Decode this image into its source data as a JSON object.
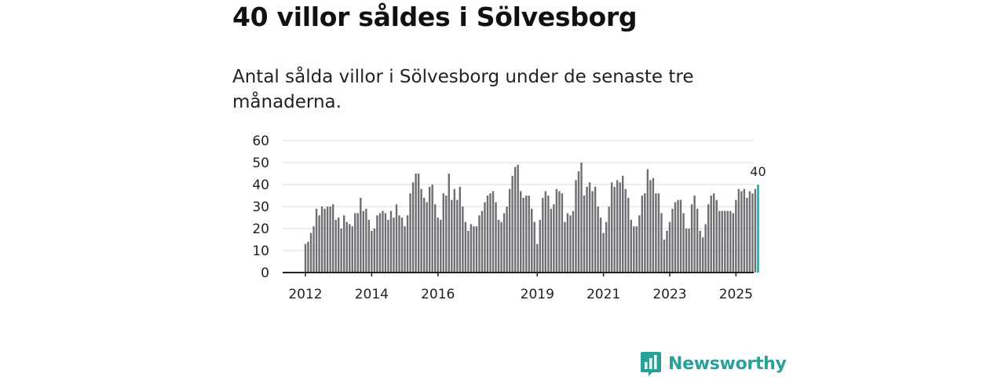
{
  "page": {
    "title": "40 villor såldes i Sölvesborg",
    "subtitle": "Antal sålda villor i Sölvesborg under de senaste tre månaderna."
  },
  "brand": {
    "name": "Newsworthy",
    "icon": "newsworthy-chart-icon",
    "color": "#2aa198"
  },
  "colors": {
    "bar": "#6e6e73",
    "highlight": "#1aa39a",
    "grid": "#d9d9d9",
    "axis": "#222222"
  },
  "chart_data": {
    "type": "bar",
    "title": "Antal sålda villor i Sölvesborg under de senaste tre månaderna.",
    "xlabel": "",
    "ylabel": "",
    "ylim": [
      0,
      60
    ],
    "yticks": [
      0,
      10,
      20,
      30,
      40,
      50,
      60
    ],
    "grid": true,
    "start_year": 2012,
    "start_month": 1,
    "x_tick_labels": [
      "2012",
      "2014",
      "2016",
      "2019",
      "2021",
      "2023",
      "2025"
    ],
    "highlight_last": true,
    "last_label": "40",
    "values": [
      13,
      14,
      18,
      21,
      29,
      26,
      30,
      29,
      30,
      30,
      31,
      24,
      25,
      20,
      26,
      23,
      22,
      21,
      27,
      27,
      34,
      28,
      29,
      24,
      19,
      20,
      26,
      27,
      28,
      27,
      24,
      28,
      25,
      31,
      26,
      25,
      21,
      26,
      36,
      41,
      45,
      45,
      38,
      34,
      32,
      39,
      40,
      31,
      25,
      24,
      36,
      35,
      45,
      33,
      38,
      33,
      39,
      30,
      23,
      19,
      22,
      21,
      21,
      26,
      28,
      32,
      35,
      36,
      37,
      32,
      24,
      23,
      27,
      30,
      38,
      44,
      48,
      49,
      37,
      34,
      35,
      35,
      29,
      23,
      13,
      24,
      34,
      37,
      35,
      29,
      31,
      38,
      37,
      36,
      23,
      27,
      26,
      28,
      42,
      46,
      50,
      35,
      39,
      41,
      37,
      39,
      30,
      25,
      18,
      23,
      30,
      41,
      39,
      42,
      41,
      44,
      38,
      34,
      24,
      21,
      21,
      26,
      35,
      36,
      47,
      42,
      43,
      36,
      36,
      27,
      15,
      19,
      23,
      29,
      32,
      33,
      33,
      27,
      20,
      20,
      31,
      35,
      29,
      19,
      16,
      22,
      31,
      35,
      36,
      33,
      28,
      28,
      28,
      28,
      28,
      27,
      33,
      38,
      37,
      38,
      34,
      37,
      36,
      38,
      40
    ]
  }
}
